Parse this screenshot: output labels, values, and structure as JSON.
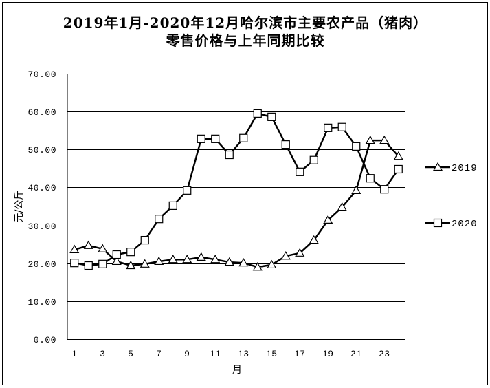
{
  "chart_data": {
    "type": "line",
    "title_lines": [
      "2019年1月-2020年12月哈尔滨市主要农产品（猪肉）",
      "零售价格与上年同期比较"
    ],
    "xlabel": "月",
    "ylabel": "元/公斤",
    "x": [
      1,
      2,
      3,
      4,
      5,
      6,
      7,
      8,
      9,
      10,
      11,
      12,
      13,
      14,
      15,
      16,
      17,
      18,
      19,
      20,
      21,
      22,
      23,
      24
    ],
    "x_tick_labels": [
      "1",
      "3",
      "5",
      "7",
      "9",
      "11",
      "13",
      "15",
      "17",
      "19",
      "21",
      "23"
    ],
    "y_tick_labels": [
      "0.00",
      "10.00",
      "20.00",
      "30.00",
      "40.00",
      "50.00",
      "60.00",
      "70.00"
    ],
    "ylim": [
      0,
      70
    ],
    "grid": true,
    "legend": "right",
    "line_color": "#000000",
    "marker_fill": "#ffffff",
    "series": [
      {
        "name": "2019",
        "marker": "triangle",
        "values": [
          23.6,
          24.7,
          23.8,
          20.5,
          19.4,
          19.8,
          20.5,
          21.0,
          21.0,
          21.6,
          21.0,
          20.3,
          20.1,
          19.0,
          19.6,
          21.9,
          22.7,
          26.1,
          31.4,
          34.8,
          39.2,
          52.4,
          52.4,
          48.2
        ]
      },
      {
        "name": "2020",
        "marker": "square",
        "values": [
          20.1,
          19.4,
          19.8,
          22.3,
          23.0,
          26.1,
          31.7,
          35.2,
          39.2,
          52.8,
          52.8,
          48.6,
          53.0,
          59.5,
          58.6,
          51.3,
          44.1,
          47.2,
          55.7,
          55.9,
          50.8,
          42.4,
          39.5,
          44.8
        ]
      }
    ]
  }
}
